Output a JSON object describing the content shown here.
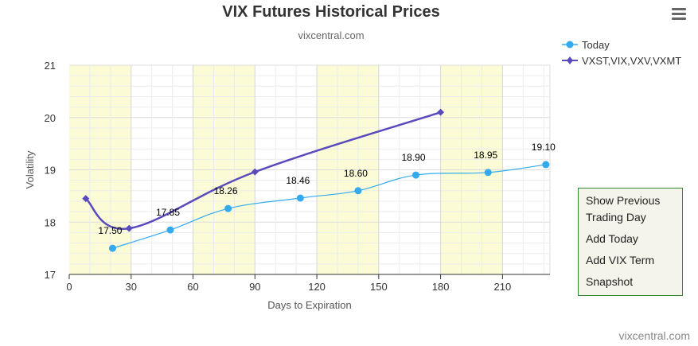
{
  "header": {
    "title": "VIX Futures Historical Prices",
    "subtitle": "vixcentral.com",
    "menu_icon": "hamburger-menu-icon"
  },
  "legend": {
    "items": [
      {
        "label": "Today",
        "color": "#33aaee",
        "marker": "circle"
      },
      {
        "label": "VXST,VIX,VXV,VXMT",
        "color": "#5a4bbd",
        "marker": "diamond"
      }
    ]
  },
  "actions": {
    "show_previous": "Show Previous Trading Day",
    "add_today": "Add Today",
    "add_vix_term": "Add VIX Term",
    "snapshot": "Snapshot"
  },
  "credit": "vixcentral.com",
  "chart_data": {
    "type": "line",
    "xlabel": "Days to Expiration",
    "ylabel": "Volatility",
    "xlim": [
      0,
      233
    ],
    "ylim": [
      17,
      21
    ],
    "x_ticks": [
      0,
      30,
      60,
      90,
      120,
      150,
      180,
      210
    ],
    "y_ticks": [
      17,
      18,
      19,
      20,
      21
    ],
    "grid": true,
    "bands": [
      [
        0,
        30
      ],
      [
        60,
        90
      ],
      [
        120,
        150
      ],
      [
        180,
        210
      ]
    ],
    "colors": {
      "band": "#fbfcd6",
      "grid": "#e6e6e6",
      "axis": "#333333"
    },
    "legend_position": "top-right",
    "series": [
      {
        "name": "Today",
        "color": "#33aaee",
        "marker": "circle",
        "x": [
          21,
          49,
          77,
          112,
          140,
          168,
          203,
          231
        ],
        "y": [
          17.5,
          17.85,
          18.26,
          18.46,
          18.6,
          18.9,
          18.95,
          19.1
        ],
        "labels": [
          "17.50",
          "17.85",
          "18.26",
          "18.46",
          "18.60",
          "18.90",
          "18.95",
          "19.10"
        ]
      },
      {
        "name": "VXST,VIX,VXV,VXMT",
        "color": "#5a4bbd",
        "marker": "diamond",
        "x": [
          8,
          29,
          90,
          180
        ],
        "y": [
          18.45,
          17.88,
          18.96,
          20.1
        ]
      }
    ]
  }
}
